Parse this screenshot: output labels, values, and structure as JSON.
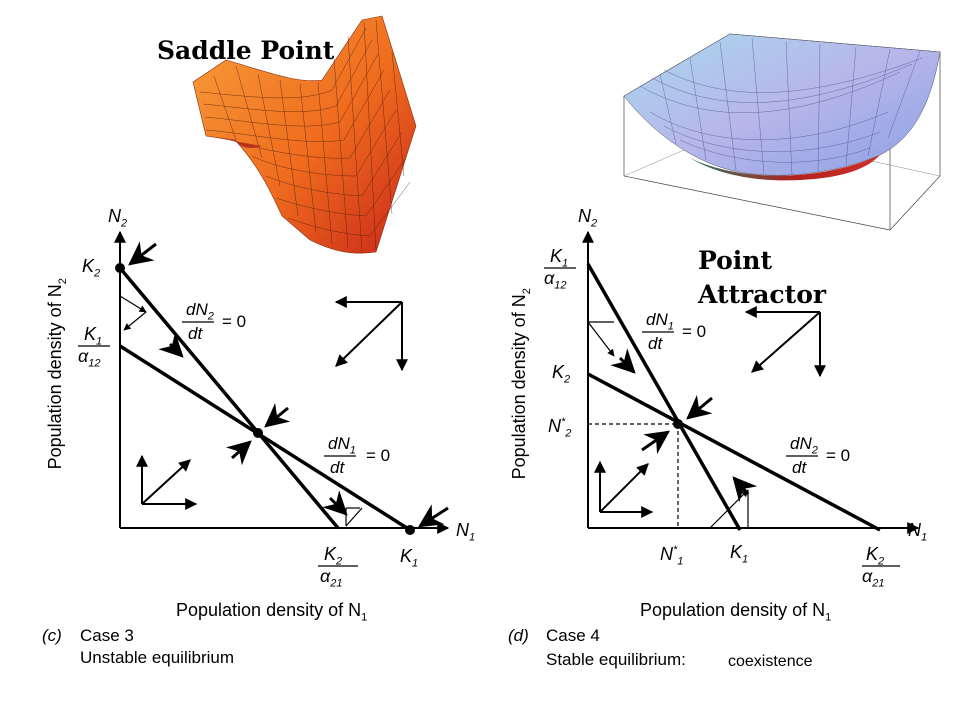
{
  "labels": {
    "saddle_title": "Saddle Point",
    "attractor_title": "Point Attractor"
  },
  "panel_c": {
    "tag": "(c)",
    "case": "Case 3",
    "desc": "Unstable equilibrium",
    "xlabel": "Population density of N",
    "xlabel_sub": "1",
    "ylabel": "Population density of N",
    "ylabel_sub": "2",
    "n1": "N",
    "n1_sub": "1",
    "n2": "N",
    "n2_sub": "2",
    "k2_axis": "K",
    "k2_axis_sub": "2",
    "k1_over_a12": {
      "num": "K",
      "num_sub": "1",
      "den": "α",
      "den_sub": "12"
    },
    "k2_over_a21": {
      "num": "K",
      "num_sub": "2",
      "den": "α",
      "den_sub": "21"
    },
    "k1_axis": "K",
    "k1_axis_sub": "1",
    "iso_n2": {
      "num": "dN",
      "num_sub": "2",
      "den": "dt",
      "eq": "= 0"
    },
    "iso_n1": {
      "num": "dN",
      "num_sub": "1",
      "den": "dt",
      "eq": "= 0"
    }
  },
  "panel_d": {
    "tag": "(d)",
    "case": "Case 4",
    "desc": "Stable equilibrium:",
    "desc2": "coexistence",
    "xlabel": "Population density of N",
    "xlabel_sub": "1",
    "ylabel": "Population density of N",
    "ylabel_sub": "2",
    "n1": "N",
    "n1_sub": "1",
    "n2": "N",
    "n2_sub": "2",
    "k1_over_a12": {
      "num": "K",
      "num_sub": "1",
      "den": "α",
      "den_sub": "12"
    },
    "k2_axis": "K",
    "k2_axis_sub": "2",
    "n2_star": "N",
    "n2_star_sup": "*",
    "n2_star_sub": "2",
    "n1_star": "N",
    "n1_star_sup": "*",
    "n1_star_sub": "1",
    "k1_axis": "K",
    "k1_axis_sub": "1",
    "k2_over_a21": {
      "num": "K",
      "num_sub": "2",
      "den": "α",
      "den_sub": "21"
    },
    "iso_n1": {
      "num": "dN",
      "num_sub": "1",
      "den": "dt",
      "eq": "= 0"
    },
    "iso_n2": {
      "num": "dN",
      "num_sub": "2",
      "den": "dt",
      "eq": "= 0"
    }
  }
}
